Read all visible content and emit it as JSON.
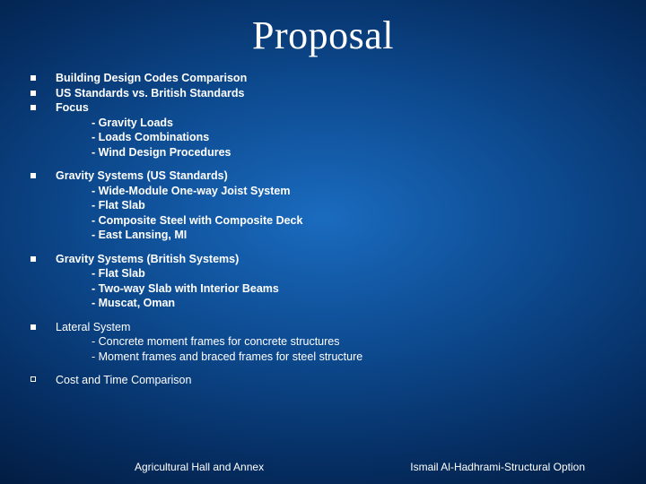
{
  "background": {
    "gradient_center": "#1a6bbf",
    "gradient_mid": "#0d4a8f",
    "gradient_outer": "#063066",
    "gradient_edge": "#021a3d"
  },
  "text_color": "#ffffff",
  "title": "Proposal",
  "title_fontsize_pt": 33,
  "title_font_family": "Times New Roman",
  "body_font_family": "Verdana",
  "body_fontsize_pt": 9.5,
  "blocks": [
    {
      "type": "multi-head",
      "heads": [
        "Building Design Codes Comparison",
        "US Standards vs. British Standards",
        "Focus"
      ],
      "subs": [
        "- Gravity Loads",
        "- Loads Combinations",
        "- Wind Design Procedures"
      ],
      "bold": true
    },
    {
      "type": "single-head",
      "head": "Gravity Systems (US Standards)",
      "subs": [
        "- Wide-Module One-way Joist System",
        "- Flat Slab",
        "- Composite Steel with Composite Deck",
        "- East Lansing, MI"
      ],
      "bold": true
    },
    {
      "type": "single-head",
      "head": "Gravity Systems (British Systems)",
      "subs": [
        "- Flat Slab",
        "- Two-way Slab with Interior Beams",
        "- Muscat, Oman"
      ],
      "bold": true
    },
    {
      "type": "single-head",
      "head": "Lateral System",
      "subs": [
        "- Concrete moment frames for concrete structures",
        "- Moment frames and braced frames for steel structure"
      ],
      "bold": false
    },
    {
      "type": "single-head",
      "head": "Cost and Time Comparison",
      "subs": [],
      "bold": false,
      "bullet": "open"
    }
  ],
  "footer": {
    "left": "Agricultural Hall and Annex",
    "right": "Ismail Al-Hadhrami-Structural Option"
  }
}
